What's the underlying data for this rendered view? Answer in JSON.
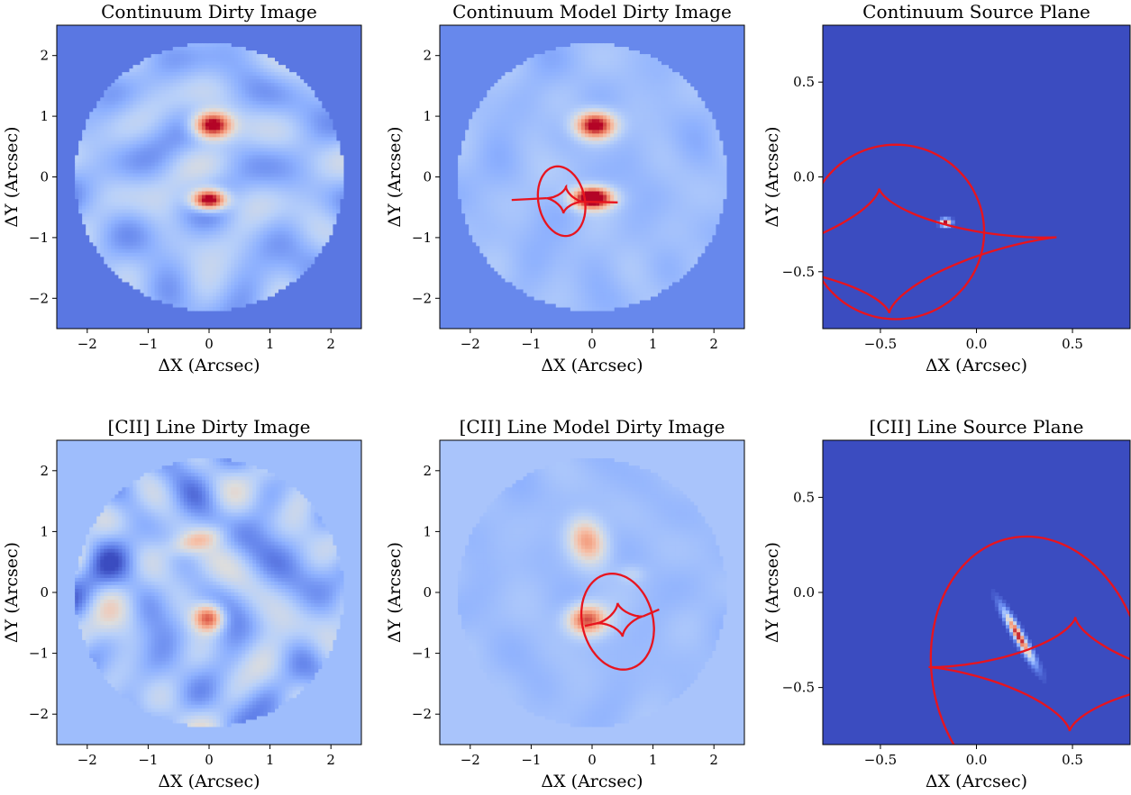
{
  "chart_data": [
    {
      "type": "heatmap",
      "title": "Continuum Dirty Image",
      "xlabel": "ΔX (Arcsec)",
      "ylabel": "ΔY (Arcsec)",
      "xlim": [
        -2.5,
        2.5
      ],
      "ylim": [
        -2.5,
        2.5
      ],
      "xticks": [
        -2,
        -1,
        0,
        1,
        2
      ],
      "yticks": [
        -2,
        -1,
        0,
        1,
        2
      ],
      "colormap": "coolwarm",
      "aperture_radius": 2.2,
      "background_level": 0.1,
      "noise_amplitude": 0.16,
      "noise_seed": 3,
      "sources": [
        {
          "x": 0.05,
          "y": 0.85,
          "amp": 0.85,
          "sx": 0.22,
          "sy": 0.15,
          "rot": 0
        },
        {
          "x": 0.0,
          "y": -0.38,
          "amp": 0.95,
          "sx": 0.2,
          "sy": 0.12,
          "rot": 0
        }
      ],
      "curves": []
    },
    {
      "type": "heatmap",
      "title": "Continuum Model Dirty Image",
      "xlabel": "ΔX (Arcsec)",
      "ylabel": "ΔY (Arcsec)",
      "xlim": [
        -2.5,
        2.5
      ],
      "ylim": [
        -2.5,
        2.5
      ],
      "xticks": [
        -2,
        -1,
        0,
        1,
        2
      ],
      "yticks": [
        -2,
        -1,
        0,
        1,
        2
      ],
      "colormap": "coolwarm",
      "aperture_radius": 2.2,
      "background_level": 0.14,
      "noise_amplitude": 0.05,
      "noise_seed": 7,
      "sources": [
        {
          "x": 0.05,
          "y": 0.85,
          "amp": 0.78,
          "sx": 0.22,
          "sy": 0.15,
          "rot": 0
        },
        {
          "x": 0.0,
          "y": -0.35,
          "amp": 0.98,
          "sx": 0.22,
          "sy": 0.12,
          "rot": 0
        }
      ],
      "curves": [
        {
          "kind": "ellipse",
          "cx": -0.5,
          "cy": -0.4,
          "a": 0.38,
          "b": 0.58,
          "rot": 0.2
        },
        {
          "kind": "astroid",
          "cx": -0.45,
          "cy": -0.38,
          "ax": 0.3,
          "ay": 0.22,
          "rot": -0.1,
          "tails": [
            [
              -1.32,
              -0.38
            ],
            [
              0.42,
              -0.42
            ]
          ]
        }
      ]
    },
    {
      "type": "heatmap",
      "title": "Continuum Source Plane",
      "xlabel": "ΔX (Arcsec)",
      "ylabel": "ΔY (Arcsec)",
      "xlim": [
        -0.8,
        0.8
      ],
      "ylim": [
        -0.8,
        0.8
      ],
      "xticks": [
        -0.5,
        0.0,
        0.5
      ],
      "yticks": [
        -0.5,
        0.0,
        0.5
      ],
      "colormap": "coolwarm",
      "aperture_radius": 0,
      "background_level": 0.0,
      "noise_amplitude": 0,
      "noise_seed": 1,
      "sources": [
        {
          "x": -0.16,
          "y": -0.24,
          "amp": 1.0,
          "sx": 0.018,
          "sy": 0.012,
          "rot": 0
        }
      ],
      "curves": [
        {
          "kind": "ellipse",
          "cx": -0.42,
          "cy": -0.29,
          "a": 0.46,
          "b": 0.46,
          "rot": 0
        },
        {
          "kind": "astroid",
          "cx": -0.48,
          "cy": -0.39,
          "ax": 0.9,
          "ay": 0.33,
          "rot": 0.08,
          "tails": []
        }
      ]
    },
    {
      "type": "heatmap",
      "title": "[CII] Line Dirty Image",
      "xlabel": "ΔX (Arcsec)",
      "ylabel": "ΔY (Arcsec)",
      "xlim": [
        -2.5,
        2.5
      ],
      "ylim": [
        -2.5,
        2.5
      ],
      "xticks": [
        -2,
        -1,
        0,
        1,
        2
      ],
      "yticks": [
        -2,
        -1,
        0,
        1,
        2
      ],
      "colormap": "coolwarm",
      "aperture_radius": 2.2,
      "background_level": 0.3,
      "noise_amplitude": 0.24,
      "noise_seed": 11,
      "sources": [
        {
          "x": 0.0,
          "y": -0.42,
          "amp": 0.65,
          "sx": 0.18,
          "sy": 0.16,
          "rot": 0
        },
        {
          "x": -0.2,
          "y": 0.85,
          "amp": 0.25,
          "sx": 0.3,
          "sy": 0.12,
          "rot": 0.3
        }
      ],
      "curves": []
    },
    {
      "type": "heatmap",
      "title": "[CII] Line Model Dirty Image",
      "xlabel": "ΔX (Arcsec)",
      "ylabel": "ΔY (Arcsec)",
      "xlim": [
        -2.5,
        2.5
      ],
      "ylim": [
        -2.5,
        2.5
      ],
      "xticks": [
        -2,
        -1,
        0,
        1,
        2
      ],
      "yticks": [
        -2,
        -1,
        0,
        1,
        2
      ],
      "colormap": "coolwarm",
      "aperture_radius": 2.2,
      "background_level": 0.33,
      "noise_amplitude": 0.04,
      "noise_seed": 5,
      "sources": [
        {
          "x": -0.08,
          "y": 0.85,
          "amp": 0.42,
          "sx": 0.2,
          "sy": 0.26,
          "rot": 0.4
        },
        {
          "x": -0.08,
          "y": -0.45,
          "amp": 0.62,
          "sx": 0.22,
          "sy": 0.17,
          "rot": 0
        },
        {
          "x": 0.65,
          "y": 0.3,
          "amp": 0.1,
          "sx": 0.15,
          "sy": 0.1,
          "rot": 0
        }
      ],
      "curves": [
        {
          "kind": "ellipse",
          "cx": 0.42,
          "cy": -0.48,
          "a": 0.58,
          "b": 0.8,
          "rot": 0.25
        },
        {
          "kind": "astroid",
          "cx": 0.46,
          "cy": -0.45,
          "ax": 0.38,
          "ay": 0.28,
          "rot": 0.15,
          "tails": [
            [
              -0.12,
              -0.55
            ],
            [
              1.1,
              -0.28
            ]
          ]
        }
      ]
    },
    {
      "type": "heatmap",
      "title": "[CII] Line Source Plane",
      "xlabel": "ΔX (Arcsec)",
      "ylabel": "ΔY (Arcsec)",
      "xlim": [
        -0.8,
        0.8
      ],
      "ylim": [
        -0.8,
        0.8
      ],
      "xticks": [
        -0.5,
        0.0,
        0.5
      ],
      "yticks": [
        -0.5,
        0.0,
        0.5
      ],
      "colormap": "coolwarm",
      "aperture_radius": 0,
      "background_level": 0.0,
      "noise_amplitude": 0,
      "noise_seed": 2,
      "sources": [
        {
          "x": 0.22,
          "y": -0.23,
          "amp": 1.0,
          "sx": 0.1,
          "sy": 0.015,
          "rot": -1.05
        }
      ],
      "curves": [
        {
          "kind": "ellipse",
          "cx": 0.32,
          "cy": -0.42,
          "a": 0.55,
          "b": 0.72,
          "rot": 0.2
        },
        {
          "kind": "astroid",
          "cx": 0.5,
          "cy": -0.43,
          "ax": 0.75,
          "ay": 0.3,
          "rot": -0.05,
          "tails": []
        }
      ]
    }
  ]
}
